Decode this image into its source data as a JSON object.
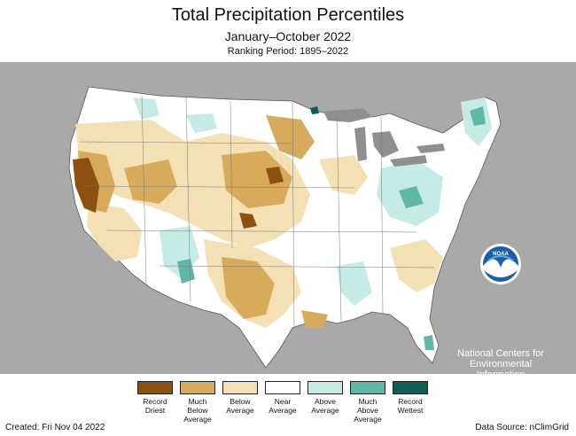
{
  "title": "Total Precipitation Percentiles",
  "subtitle": "January–October 2022",
  "ranking_period": "Ranking Period: 1895–2022",
  "logo": {
    "name": "noaa-logo",
    "text": "NOAA"
  },
  "org_text": [
    "National Centers for",
    "Environmental",
    "Information"
  ],
  "legend": [
    {
      "label": [
        "Record",
        "Driest"
      ],
      "color": "#8c5110"
    },
    {
      "label": [
        "Much",
        "Below",
        "Average"
      ],
      "color": "#d8aa5c"
    },
    {
      "label": [
        "Below",
        "Average"
      ],
      "color": "#f3e0b5"
    },
    {
      "label": [
        "Near",
        "Average"
      ],
      "color": "#ffffff"
    },
    {
      "label": [
        "Above",
        "Average"
      ],
      "color": "#c6ebe4"
    },
    {
      "label": [
        "Much",
        "Above",
        "Average"
      ],
      "color": "#5fb7a8"
    },
    {
      "label": [
        "Record",
        "Wettest"
      ],
      "color": "#0e5e56"
    }
  ],
  "colors": {
    "background_land": "#a9a9a9",
    "water": "#d3d3d3",
    "record_driest": "#8c5110",
    "much_below": "#d8aa5c",
    "below": "#f3e0b5",
    "near": "#ffffff",
    "above": "#c6ebe4",
    "much_above": "#5fb7a8",
    "record_wettest": "#0e5e56"
  },
  "footer": {
    "created": "Created: Fri Nov 04 2022",
    "source": "Data Source: nClimGrid"
  }
}
